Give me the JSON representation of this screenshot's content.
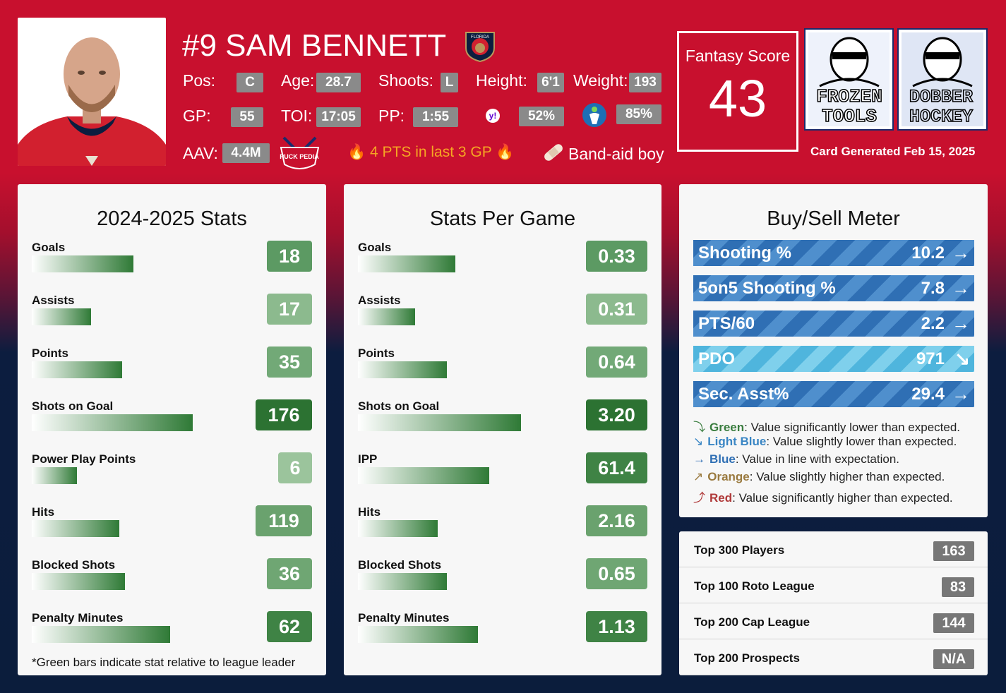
{
  "header": {
    "name": "#9 SAM BENNETT",
    "pos_label": "Pos:",
    "pos": "C",
    "age_label": "Age:",
    "age": "28.7",
    "shoots_label": "Shoots:",
    "shoots": "L",
    "height_label": "Height:",
    "height": "6'1",
    "weight_label": "Weight:",
    "weight": "193",
    "gp_label": "GP:",
    "gp": "55",
    "toi_label": "TOI:",
    "toi": "17:05",
    "pp_label": "PP:",
    "pp": "1:55",
    "yahoo_pct": "52%",
    "espn_pct": "85%",
    "aav_label": "AAV:",
    "aav": "4.4M",
    "hot_text": "4 PTS in last 3 GP",
    "injury_text": "Band-aid boy",
    "team_logo_text": "FLORIDA",
    "puckpedia_logo": "PUCK PEDIA"
  },
  "fantasy": {
    "label": "Fantasy Score",
    "score": "43"
  },
  "logos": {
    "frozen": [
      "FROZEN",
      "TOOLS"
    ],
    "dobber": [
      "DOBBER",
      "HOCKEY"
    ]
  },
  "generated": "Card Generated Feb 15, 2025",
  "season_stats": {
    "title": "2024-2025 Stats",
    "rows": [
      {
        "label": "Goals",
        "value": "18",
        "ratio": 0.36,
        "color": "#5c9a63"
      },
      {
        "label": "Assists",
        "value": "17",
        "ratio": 0.21,
        "color": "#8cba8e"
      },
      {
        "label": "Points",
        "value": "35",
        "ratio": 0.32,
        "color": "#72a977"
      },
      {
        "label": "Shots on Goal",
        "value": "176",
        "ratio": 0.57,
        "color": "#2c7232"
      },
      {
        "label": "Power Play Points",
        "value": "6",
        "ratio": 0.16,
        "color": "#9bc49c"
      },
      {
        "label": "Hits",
        "value": "119",
        "ratio": 0.31,
        "color": "#6aa26e"
      },
      {
        "label": "Blocked Shots",
        "value": "36",
        "ratio": 0.33,
        "color": "#6fa673"
      },
      {
        "label": "Penalty Minutes",
        "value": "62",
        "ratio": 0.49,
        "color": "#3f8345"
      }
    ],
    "note": "*Green bars indicate stat relative to league leader"
  },
  "per_game": {
    "title": "Stats Per Game",
    "rows": [
      {
        "label": "Goals",
        "value": "0.33",
        "ratio": 0.34,
        "color": "#5c9a63"
      },
      {
        "label": "Assists",
        "value": "0.31",
        "ratio": 0.2,
        "color": "#8cba8e"
      },
      {
        "label": "Points",
        "value": "0.64",
        "ratio": 0.31,
        "color": "#72a977"
      },
      {
        "label": "Shots on Goal",
        "value": "3.20",
        "ratio": 0.57,
        "color": "#2c7232"
      },
      {
        "label": "IPP",
        "value": "61.4",
        "ratio": 0.46,
        "color": "#3f8345"
      },
      {
        "label": "Hits",
        "value": "2.16",
        "ratio": 0.28,
        "color": "#6aa26e"
      },
      {
        "label": "Blocked Shots",
        "value": "0.65",
        "ratio": 0.31,
        "color": "#6fa673"
      },
      {
        "label": "Penalty Minutes",
        "value": "1.13",
        "ratio": 0.42,
        "color": "#3f8345"
      }
    ]
  },
  "meter": {
    "title": "Buy/Sell Meter",
    "rows": [
      {
        "label": "Shooting %",
        "value": "10.2",
        "arrow": "→",
        "style": "blue"
      },
      {
        "label": "5on5 Shooting %",
        "value": "7.8",
        "arrow": "→",
        "style": "blue"
      },
      {
        "label": "PTS/60",
        "value": "2.2",
        "arrow": "→",
        "style": "blue"
      },
      {
        "label": "PDO",
        "value": "971",
        "arrow": "↘",
        "style": "lightblue"
      },
      {
        "label": "Sec. Asst%",
        "value": "29.4",
        "arrow": "→",
        "style": "blue"
      }
    ],
    "legend": [
      {
        "icon": "⤵",
        "key": "Green",
        "color": "#3a7d3f",
        "text": ": Value significantly lower than expected."
      },
      {
        "icon": "↘",
        "key": "Light Blue",
        "color": "#3a86c4",
        "text": ": Value slightly lower than expected."
      },
      {
        "icon": "→",
        "key": "Blue",
        "color": "#2f6fb4",
        "text": ": Value in line with expectation."
      },
      {
        "icon": "↗",
        "key": "Orange",
        "color": "#9a7a3f",
        "text": ": Value slightly higher than expected."
      },
      {
        "icon": "⤴",
        "key": "Red",
        "color": "#b03a3a",
        "text": ": Value significantly higher than expected."
      }
    ]
  },
  "rankings": [
    {
      "label": "Top 300 Players",
      "value": "163"
    },
    {
      "label": "Top 100 Roto League",
      "value": "83"
    },
    {
      "label": "Top 200 Cap League",
      "value": "144"
    },
    {
      "label": "Top 200 Prospects",
      "value": "N/A"
    }
  ]
}
